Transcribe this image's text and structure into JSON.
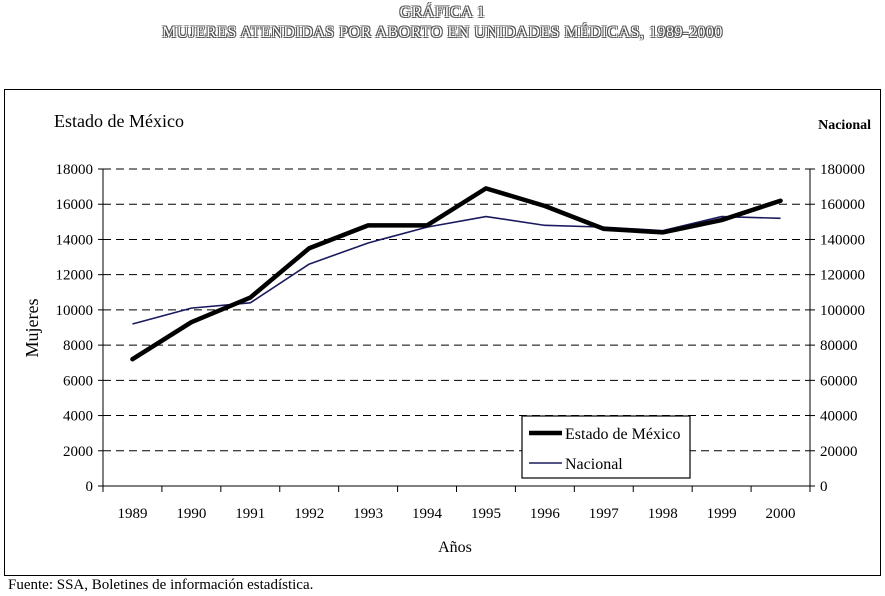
{
  "chart_data": {
    "type": "line",
    "title": "GRÁFICA 1",
    "subtitle": "MUJERES ATENDIDAS POR ABORTO EN UNIDADES MÉDICAS, 1989-2000",
    "left_axis_title": "Estado de México",
    "right_axis_title": "Nacional",
    "xlabel": "Años",
    "ylabel": "Mujeres",
    "categories": [
      "1989",
      "1990",
      "1991",
      "1992",
      "1993",
      "1994",
      "1995",
      "1996",
      "1997",
      "1998",
      "1999",
      "2000"
    ],
    "y_left_ticks": [
      "0",
      "2000",
      "4000",
      "6000",
      "8000",
      "10000",
      "12000",
      "14000",
      "16000",
      "18000"
    ],
    "y_right_ticks": [
      "0",
      "20000",
      "40000",
      "60000",
      "80000",
      "100000",
      "120000",
      "140000",
      "160000",
      "180000"
    ],
    "ylim_left": [
      0,
      18000
    ],
    "ylim_right": [
      0,
      180000
    ],
    "grid": true,
    "legend_position": "bottom-right",
    "series": [
      {
        "name": "Estado de México",
        "axis": "left",
        "values": [
          7200,
          9300,
          10700,
          13500,
          14800,
          14800,
          16900,
          15900,
          14600,
          14400,
          15100,
          16200
        ]
      },
      {
        "name": "Nacional",
        "axis": "right",
        "values": [
          92000,
          101000,
          104000,
          126000,
          138000,
          147000,
          153000,
          148000,
          147000,
          145000,
          153000,
          152000
        ]
      }
    ],
    "source": "Fuente: SSA, Boletines de información estadística.",
    "colors": {
      "estado": "#000000",
      "nacional": "#1a1a5e"
    }
  }
}
